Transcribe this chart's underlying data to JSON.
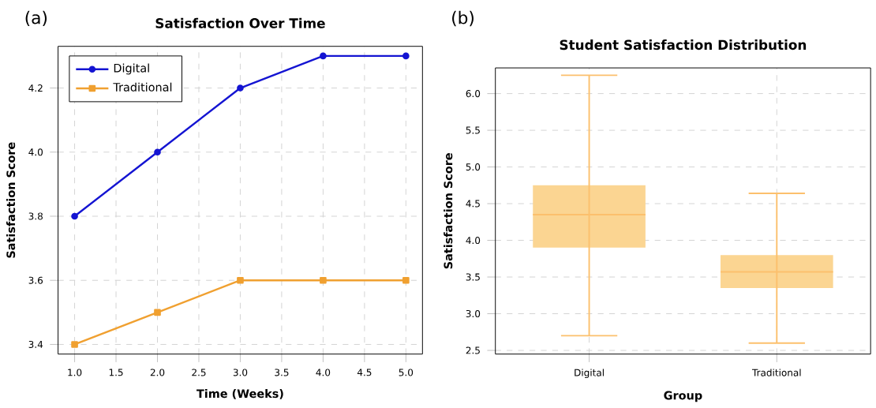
{
  "chart_data": [
    {
      "type": "line",
      "title": "Satisfaction Over Time",
      "xlabel": "Time (Weeks)",
      "ylabel": "Satisfaction Score",
      "annotations": [
        "(a)"
      ],
      "x": [
        1,
        2,
        3,
        4,
        5
      ],
      "series": [
        {
          "name": "Digital",
          "color": "#1414d2",
          "values": [
            3.8,
            4.0,
            4.2,
            4.3,
            4.3
          ],
          "marker": "circle"
        },
        {
          "name": "Traditional",
          "color": "#f0a030",
          "values": [
            3.4,
            3.5,
            3.6,
            3.6,
            3.6
          ],
          "marker": "square"
        }
      ],
      "xlim": [
        0.8,
        5.2
      ],
      "ylim": [
        3.37,
        4.33
      ],
      "xticks": [
        {
          "value": 1,
          "label": "1.0"
        },
        1.5,
        {
          "value": 2,
          "label": "2.0"
        },
        2.5,
        {
          "value": 3,
          "label": "3.0"
        },
        3.5,
        {
          "value": 4,
          "label": "4.0"
        },
        4.5,
        {
          "value": 5,
          "label": "5.0"
        }
      ],
      "yticks": [
        3.4,
        3.6,
        3.8,
        {
          "value": 4,
          "label": "4.0"
        },
        4.2
      ],
      "grid": true,
      "legend": "top left"
    },
    {
      "type": "box",
      "title": "Student Satisfaction Distribution",
      "xlabel": "Group",
      "ylabel": "Satisfaction Score",
      "annotations": [
        "(b)"
      ],
      "categories": [
        "Digital",
        "Traditional"
      ],
      "color": "#fbd592",
      "boxes": [
        {
          "low": 2.7,
          "q1": 3.9,
          "median": 4.35,
          "q3": 4.75,
          "high": 6.25
        },
        {
          "low": 2.6,
          "q1": 3.35,
          "median": 3.57,
          "q3": 3.8,
          "high": 4.64
        }
      ],
      "ylim": [
        2.45,
        6.35
      ],
      "yticks": [
        2.5,
        {
          "value": 3,
          "label": "3.0"
        },
        3.5,
        {
          "value": 4,
          "label": "4.0"
        },
        4.5,
        {
          "value": 5,
          "label": "5.0"
        },
        5.5,
        {
          "value": 6,
          "label": "6.0"
        }
      ],
      "grid": true
    }
  ]
}
